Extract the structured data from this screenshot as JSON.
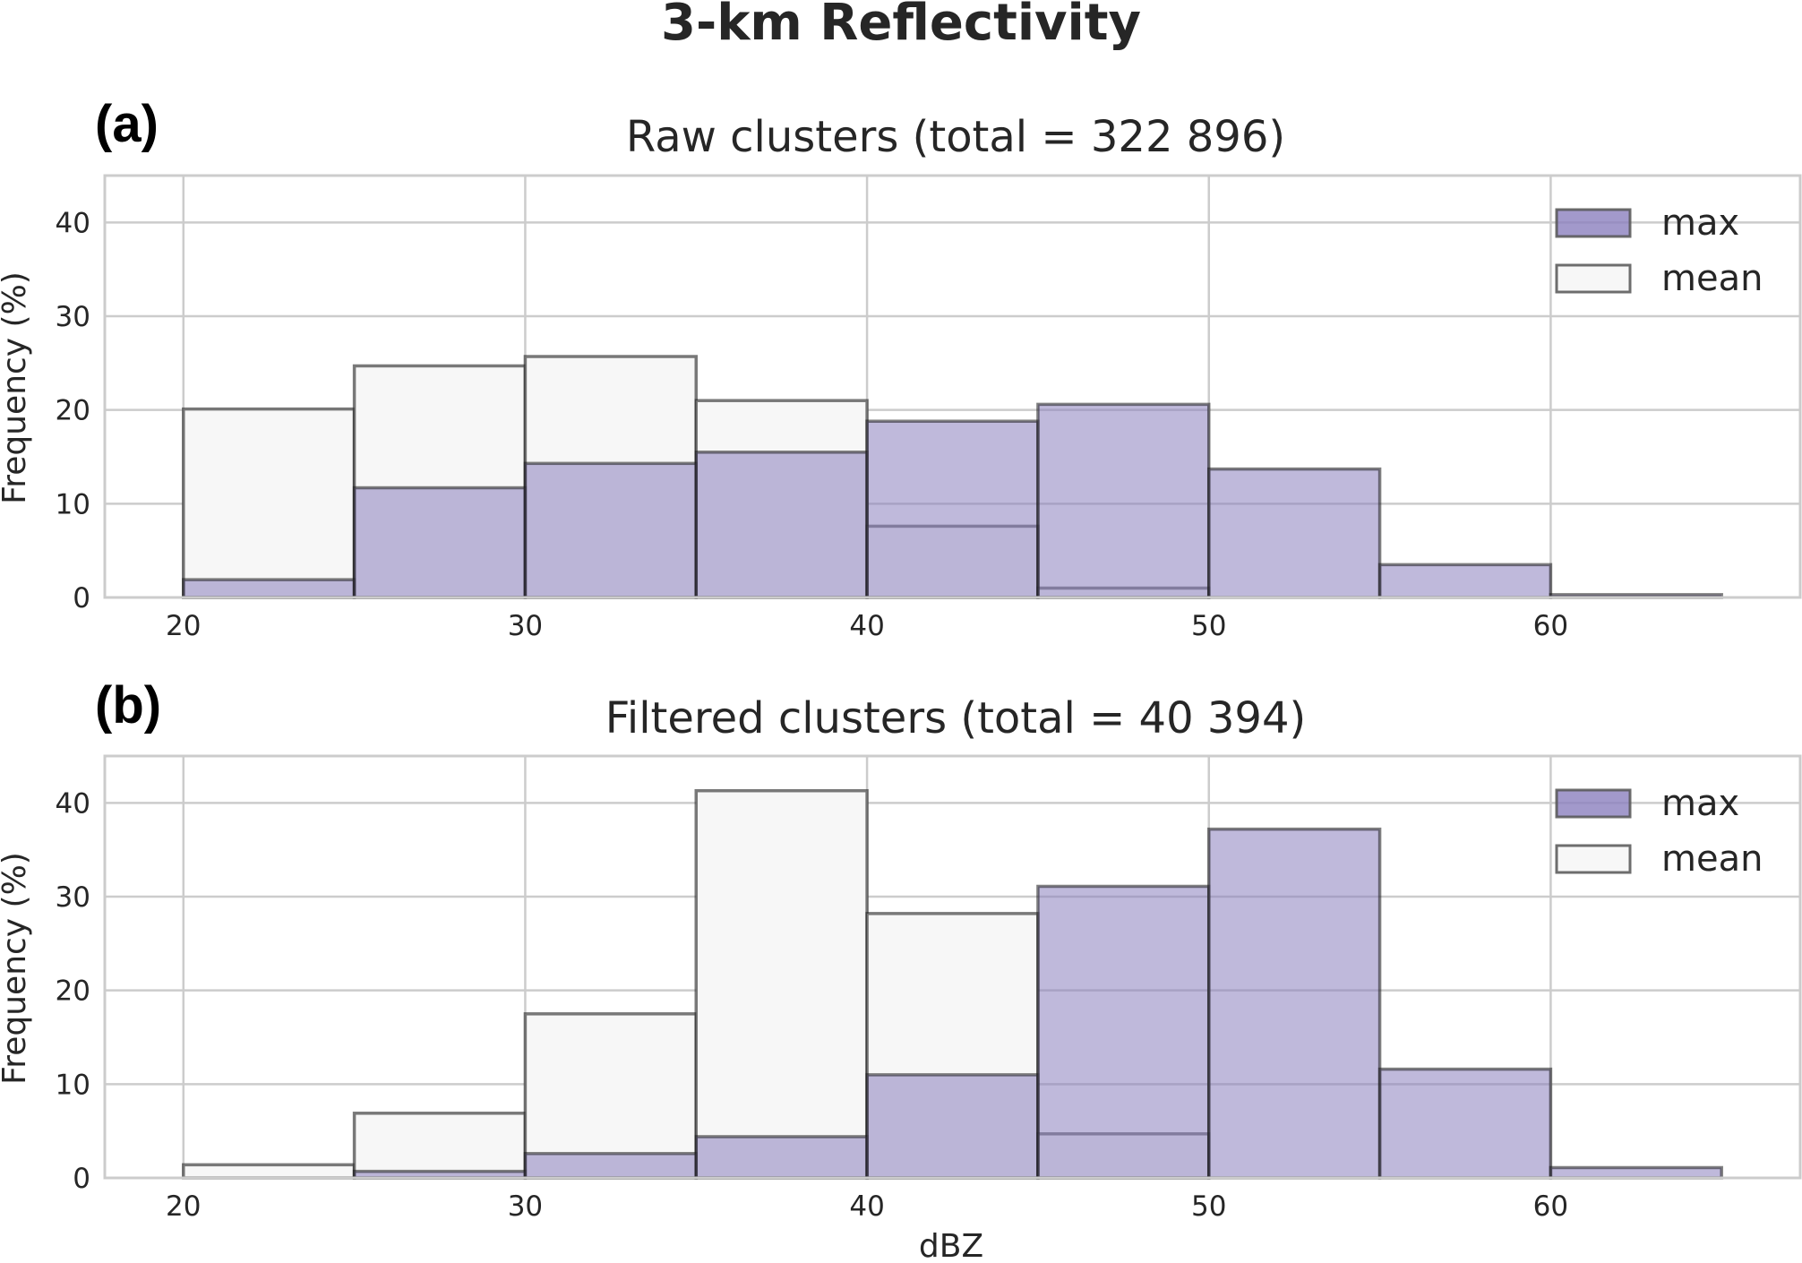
{
  "figure": {
    "title": "3-km Reflectivity"
  },
  "chart_data": [
    {
      "type": "bar",
      "panel_label": "(a)",
      "title": "Raw clusters (total = 322 896)",
      "xlabel": "",
      "ylabel": "Frequency (%)",
      "xlim": [
        17.7,
        67.3
      ],
      "ylim": [
        0,
        45
      ],
      "xticks": [
        "20",
        "30",
        "40",
        "50",
        "60"
      ],
      "yticks": [
        "0",
        "10",
        "20",
        "30",
        "40"
      ],
      "grid": true,
      "legend": "top-right",
      "bin_edges": [
        20,
        25,
        30,
        35,
        40,
        45,
        50,
        55,
        60,
        65
      ],
      "series": [
        {
          "name": "mean",
          "color": "#f7f7f7",
          "values": [
            20.1,
            24.7,
            25.7,
            21.0,
            7.6,
            1.0,
            0.0,
            0.0,
            0.0
          ]
        },
        {
          "name": "max",
          "color": "#8b7fbe",
          "values": [
            1.9,
            11.7,
            14.3,
            15.5,
            18.8,
            20.6,
            13.7,
            3.5,
            0.3
          ]
        }
      ]
    },
    {
      "type": "bar",
      "panel_label": "(b)",
      "title": "Filtered clusters (total = 40 394)",
      "xlabel": "dBZ",
      "ylabel": "Frequency (%)",
      "xlim": [
        17.7,
        67.3
      ],
      "ylim": [
        0,
        45
      ],
      "xticks": [
        "20",
        "30",
        "40",
        "50",
        "60"
      ],
      "yticks": [
        "0",
        "10",
        "20",
        "30",
        "40"
      ],
      "grid": true,
      "legend": "top-right",
      "bin_edges": [
        20,
        25,
        30,
        35,
        40,
        45,
        50,
        55,
        60,
        65
      ],
      "series": [
        {
          "name": "mean",
          "color": "#f7f7f7",
          "values": [
            1.4,
            6.9,
            17.5,
            41.3,
            28.2,
            4.7,
            0.0,
            0.0,
            0.0
          ]
        },
        {
          "name": "max",
          "color": "#8b7fbe",
          "values": [
            0.0,
            0.7,
            2.6,
            4.4,
            11.0,
            31.1,
            37.2,
            11.6,
            1.1
          ]
        }
      ]
    }
  ]
}
